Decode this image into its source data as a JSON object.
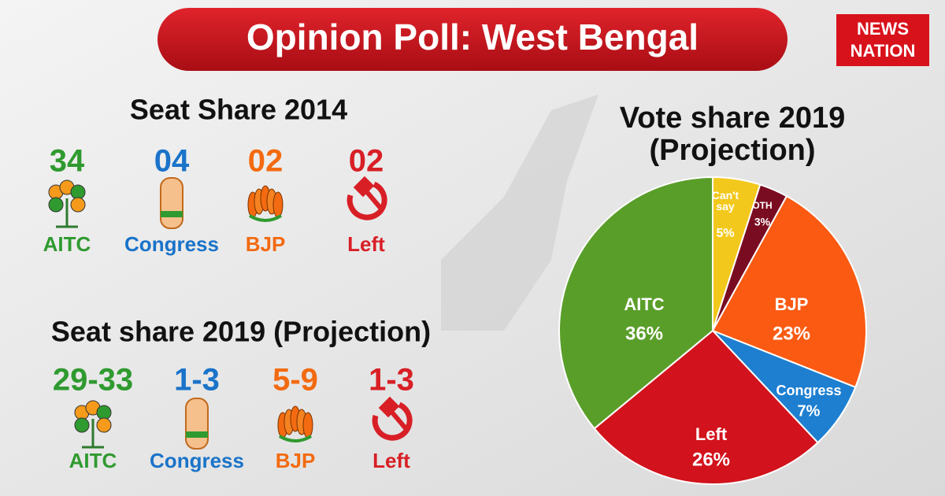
{
  "title": "Opinion Poll: West Bengal",
  "logo": [
    "NEWS",
    "NATION"
  ],
  "seat_share_2014": {
    "title": "Seat Share 2014",
    "parties": [
      {
        "value": "34",
        "name": "AITC"
      },
      {
        "value": "04",
        "name": "Congress"
      },
      {
        "value": "02",
        "name": "BJP"
      },
      {
        "value": "02",
        "name": "Left"
      }
    ]
  },
  "seat_share_2019": {
    "title": "Seat share 2019 (Projection)",
    "parties": [
      {
        "value": "29-33",
        "name": "AITC"
      },
      {
        "value": "1-3",
        "name": "Congress"
      },
      {
        "value": "5-9",
        "name": "BJP"
      },
      {
        "value": "1-3",
        "name": "Left"
      }
    ]
  },
  "chart_data": {
    "type": "pie",
    "title": "Vote share 2019",
    "subtitle": "(Projection)",
    "categories": [
      "Can't say",
      "OTH",
      "BJP",
      "Congress",
      "Left",
      "AITC"
    ],
    "values": [
      5,
      3,
      23,
      7,
      26,
      36
    ],
    "value_labels": [
      "5%",
      "3%",
      "23%",
      "7%",
      "26%",
      "36%"
    ],
    "colors": [
      "#f3c81c",
      "#7a0c22",
      "#fb5a12",
      "#1e7fd0",
      "#d2121c",
      "#5a9e2a"
    ]
  }
}
